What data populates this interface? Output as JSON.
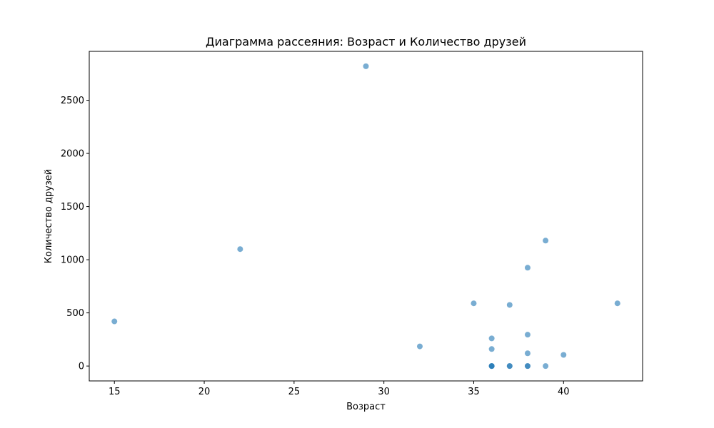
{
  "chart_data": {
    "type": "scatter",
    "title": "Диаграмма рассеяния: Возраст и Количество друзей",
    "xlabel": "Возраст",
    "ylabel": "Количество друзей",
    "xlim": [
      13.6,
      44.4
    ],
    "ylim": [
      -140,
      2960
    ],
    "xticks": [
      15,
      20,
      25,
      30,
      35,
      40
    ],
    "yticks": [
      0,
      500,
      1000,
      1500,
      2000,
      2500
    ],
    "grid": false,
    "marker_color": "#1f77b4",
    "marker_alpha": 0.6,
    "points": [
      {
        "x": 29,
        "y": 2820
      },
      {
        "x": 22,
        "y": 1100
      },
      {
        "x": 15,
        "y": 420
      },
      {
        "x": 39,
        "y": 1180
      },
      {
        "x": 38,
        "y": 925
      },
      {
        "x": 35,
        "y": 590
      },
      {
        "x": 37,
        "y": 575
      },
      {
        "x": 43,
        "y": 590
      },
      {
        "x": 38,
        "y": 295
      },
      {
        "x": 36,
        "y": 260
      },
      {
        "x": 32,
        "y": 185
      },
      {
        "x": 36,
        "y": 160
      },
      {
        "x": 38,
        "y": 120
      },
      {
        "x": 40,
        "y": 105
      },
      {
        "x": 39,
        "y": 0
      },
      {
        "x": 36,
        "y": 0
      },
      {
        "x": 36,
        "y": 0
      },
      {
        "x": 36,
        "y": 0
      },
      {
        "x": 37,
        "y": 0
      },
      {
        "x": 37,
        "y": 0
      },
      {
        "x": 38,
        "y": 0
      },
      {
        "x": 38,
        "y": 0
      }
    ]
  }
}
